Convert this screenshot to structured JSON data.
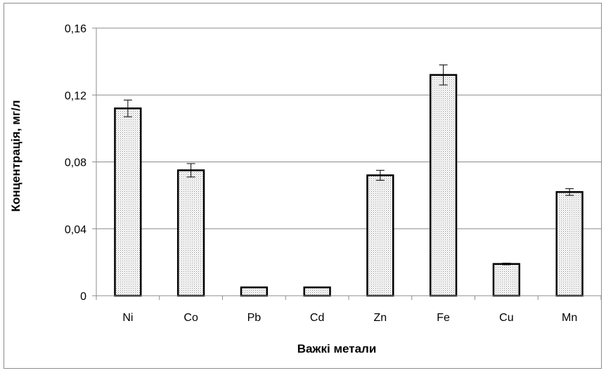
{
  "chart_data": {
    "type": "bar",
    "title": "",
    "xlabel": "Важкі метали",
    "ylabel": "Концентрація, мг/л",
    "categories": [
      "Ni",
      "Co",
      "Pb",
      "Cd",
      "Zn",
      "Fe",
      "Cu",
      "Mn"
    ],
    "series": [
      {
        "values": [
          0.112,
          0.075,
          0.005,
          0.005,
          0.072,
          0.132,
          0.019,
          0.062
        ],
        "errors": [
          0.005,
          0.004,
          0.0,
          0.0,
          0.003,
          0.006,
          0.0005,
          0.002
        ]
      }
    ],
    "ylim": [
      0,
      0.16
    ],
    "yticks": [
      "0",
      "0,04",
      "0,08",
      "0,12",
      "0,16"
    ],
    "ytick_values": [
      0,
      0.04,
      0.08,
      0.12,
      0.16
    ],
    "grid": "horizontal",
    "bar_fill": "dotted-gray",
    "colors": {
      "bar_border": "#000000",
      "grid": "#8c8c8c",
      "fill_dot": "#9a9a9a"
    }
  }
}
